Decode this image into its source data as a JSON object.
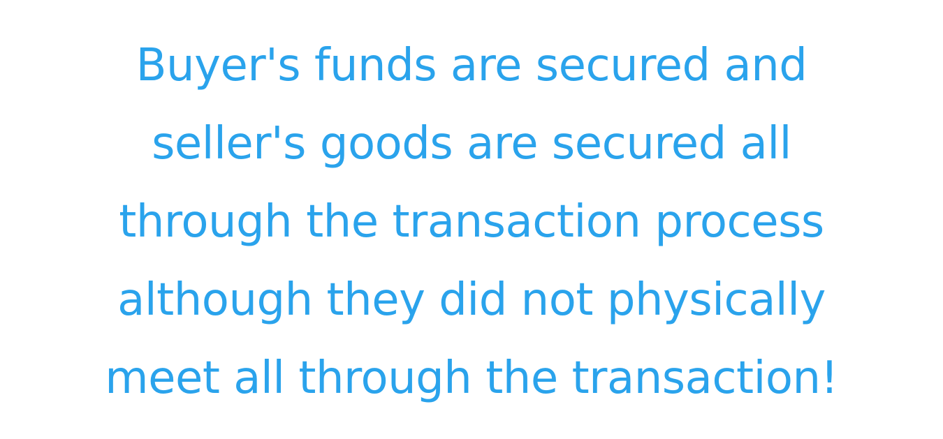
{
  "statement": {
    "lines": [
      "Buyer's funds are secured and",
      "seller's goods are secured all",
      "through the transaction process",
      "although they did not physically",
      "meet all through the transaction!"
    ]
  },
  "colors": {
    "text": "#2aa3ec",
    "background": "#ffffff"
  }
}
